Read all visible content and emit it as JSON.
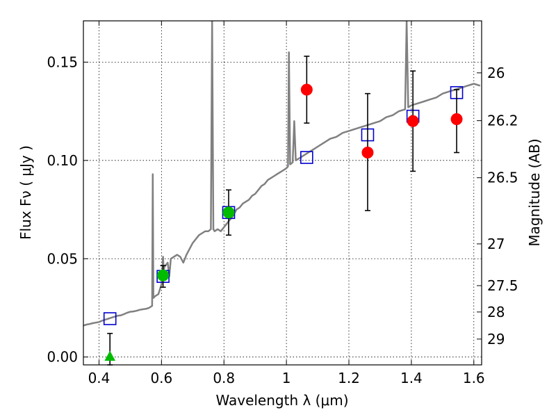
{
  "chart_data": {
    "type": "scatter",
    "xlabel": "Wavelength  λ (μm)",
    "ylabel": "Flux  Fν  ( μJy )",
    "y2label": "Magnitude (AB)",
    "xlim": [
      0.35,
      1.625
    ],
    "ylim": [
      -0.004,
      0.171
    ],
    "grid": true,
    "x_ticks": [
      {
        "value": 0.4,
        "label": "0.4"
      },
      {
        "value": 0.6,
        "label": "0.6"
      },
      {
        "value": 0.8,
        "label": "0.8"
      },
      {
        "value": 1.0,
        "label": "1"
      },
      {
        "value": 1.2,
        "label": "1.2"
      },
      {
        "value": 1.4,
        "label": "1.4"
      },
      {
        "value": 1.6,
        "label": "1.6"
      }
    ],
    "y_ticks": [
      {
        "value": 0.0,
        "label": "0.00"
      },
      {
        "value": 0.05,
        "label": "0.05"
      },
      {
        "value": 0.1,
        "label": "0.10"
      },
      {
        "value": 0.15,
        "label": "0.15"
      }
    ],
    "y2_ticks": [
      {
        "value": 26,
        "label": "26"
      },
      {
        "value": 26.2,
        "label": "26.2"
      },
      {
        "value": 26.5,
        "label": "26.5"
      },
      {
        "value": 27,
        "label": "27"
      },
      {
        "value": 27.5,
        "label": "27.5"
      },
      {
        "value": 28,
        "label": "28"
      },
      {
        "value": 29,
        "label": "29"
      }
    ],
    "colors": {
      "model": "#808080",
      "model_points": "#0000cc",
      "optical": "#00bb00",
      "nir": "#ff0000",
      "errorbar": "#000000",
      "grid": "#000000"
    },
    "series": [
      {
        "kind": "line",
        "color_key": "model",
        "points": [
          [
            0.35,
            0.016
          ],
          [
            0.36,
            0.0165
          ],
          [
            0.37,
            0.0168
          ],
          [
            0.38,
            0.0172
          ],
          [
            0.39,
            0.0175
          ],
          [
            0.4,
            0.0178
          ],
          [
            0.41,
            0.0185
          ],
          [
            0.42,
            0.019
          ],
          [
            0.43,
            0.0195
          ],
          [
            0.44,
            0.02
          ],
          [
            0.45,
            0.0205
          ],
          [
            0.46,
            0.021
          ],
          [
            0.47,
            0.0212
          ],
          [
            0.48,
            0.0218
          ],
          [
            0.49,
            0.0225
          ],
          [
            0.5,
            0.023
          ],
          [
            0.51,
            0.0232
          ],
          [
            0.52,
            0.0235
          ],
          [
            0.53,
            0.024
          ],
          [
            0.54,
            0.0243
          ],
          [
            0.55,
            0.0245
          ],
          [
            0.56,
            0.025
          ],
          [
            0.565,
            0.0255
          ],
          [
            0.57,
            0.026
          ],
          [
            0.572,
            0.093
          ],
          [
            0.574,
            0.03
          ],
          [
            0.58,
            0.031
          ],
          [
            0.59,
            0.032
          ],
          [
            0.6,
            0.037
          ],
          [
            0.605,
            0.051
          ],
          [
            0.607,
            0.044
          ],
          [
            0.61,
            0.046
          ],
          [
            0.62,
            0.048
          ],
          [
            0.625,
            0.041
          ],
          [
            0.63,
            0.05
          ],
          [
            0.64,
            0.051
          ],
          [
            0.65,
            0.052
          ],
          [
            0.66,
            0.051
          ],
          [
            0.67,
            0.048
          ],
          [
            0.68,
            0.052
          ],
          [
            0.69,
            0.055
          ],
          [
            0.7,
            0.058
          ],
          [
            0.71,
            0.06
          ],
          [
            0.72,
            0.062
          ],
          [
            0.73,
            0.063
          ],
          [
            0.74,
            0.064
          ],
          [
            0.75,
            0.064
          ],
          [
            0.758,
            0.065
          ],
          [
            0.762,
            0.171
          ],
          [
            0.766,
            0.065
          ],
          [
            0.77,
            0.064
          ],
          [
            0.78,
            0.065
          ],
          [
            0.79,
            0.064
          ],
          [
            0.8,
            0.066
          ],
          [
            0.81,
            0.068
          ],
          [
            0.82,
            0.07
          ],
          [
            0.83,
            0.072
          ],
          [
            0.84,
            0.075
          ],
          [
            0.85,
            0.076
          ],
          [
            0.86,
            0.078
          ],
          [
            0.87,
            0.079
          ],
          [
            0.88,
            0.08
          ],
          [
            0.89,
            0.082
          ],
          [
            0.9,
            0.083
          ],
          [
            0.91,
            0.085
          ],
          [
            0.92,
            0.087
          ],
          [
            0.93,
            0.088
          ],
          [
            0.94,
            0.09
          ],
          [
            0.95,
            0.091
          ],
          [
            0.96,
            0.092
          ],
          [
            0.97,
            0.093
          ],
          [
            0.98,
            0.094
          ],
          [
            0.99,
            0.095
          ],
          [
            1.0,
            0.096
          ],
          [
            1.005,
            0.097
          ],
          [
            1.008,
            0.155
          ],
          [
            1.012,
            0.098
          ],
          [
            1.02,
            0.099
          ],
          [
            1.025,
            0.12
          ],
          [
            1.03,
            0.1
          ],
          [
            1.04,
            0.101
          ],
          [
            1.05,
            0.102
          ],
          [
            1.06,
            0.103
          ],
          [
            1.07,
            0.104
          ],
          [
            1.08,
            0.105
          ],
          [
            1.09,
            0.106
          ],
          [
            1.1,
            0.107
          ],
          [
            1.12,
            0.109
          ],
          [
            1.14,
            0.111
          ],
          [
            1.16,
            0.112
          ],
          [
            1.18,
            0.114
          ],
          [
            1.2,
            0.115
          ],
          [
            1.22,
            0.116
          ],
          [
            1.24,
            0.117
          ],
          [
            1.26,
            0.118
          ],
          [
            1.28,
            0.119
          ],
          [
            1.3,
            0.12
          ],
          [
            1.32,
            0.122
          ],
          [
            1.34,
            0.123
          ],
          [
            1.36,
            0.125
          ],
          [
            1.38,
            0.126
          ],
          [
            1.385,
            0.171
          ],
          [
            1.39,
            0.127
          ],
          [
            1.4,
            0.128
          ],
          [
            1.42,
            0.129
          ],
          [
            1.44,
            0.13
          ],
          [
            1.46,
            0.131
          ],
          [
            1.48,
            0.132
          ],
          [
            1.5,
            0.134
          ],
          [
            1.52,
            0.135
          ],
          [
            1.54,
            0.136
          ],
          [
            1.56,
            0.137
          ],
          [
            1.58,
            0.138
          ],
          [
            1.6,
            0.139
          ],
          [
            1.62,
            0.138
          ]
        ]
      },
      {
        "kind": "squares",
        "color_key": "model_points",
        "points": [
          [
            0.435,
            0.0195
          ],
          [
            0.605,
            0.041
          ],
          [
            0.815,
            0.0735
          ],
          [
            1.065,
            0.1015
          ],
          [
            1.26,
            0.113
          ],
          [
            1.405,
            0.1225
          ],
          [
            1.545,
            0.1345
          ]
        ]
      },
      {
        "kind": "circles",
        "color_key": "optical",
        "points": [
          {
            "x": 0.605,
            "y": 0.0415,
            "err_low": 0.0355,
            "err_high": 0.0465
          },
          {
            "x": 0.815,
            "y": 0.0735,
            "err_low": 0.062,
            "err_high": 0.085
          }
        ]
      },
      {
        "kind": "triangles",
        "color_key": "optical",
        "points": [
          {
            "x": 0.435,
            "y": 0.0,
            "err_low": -0.004,
            "err_high": 0.012
          }
        ]
      },
      {
        "kind": "circles",
        "color_key": "nir",
        "points": [
          {
            "x": 1.065,
            "y": 0.136,
            "err_low": 0.119,
            "err_high": 0.153
          },
          {
            "x": 1.26,
            "y": 0.104,
            "err_low": 0.0745,
            "err_high": 0.134
          },
          {
            "x": 1.405,
            "y": 0.12,
            "err_low": 0.0945,
            "err_high": 0.1455
          },
          {
            "x": 1.545,
            "y": 0.121,
            "err_low": 0.104,
            "err_high": 0.136
          }
        ]
      }
    ]
  }
}
